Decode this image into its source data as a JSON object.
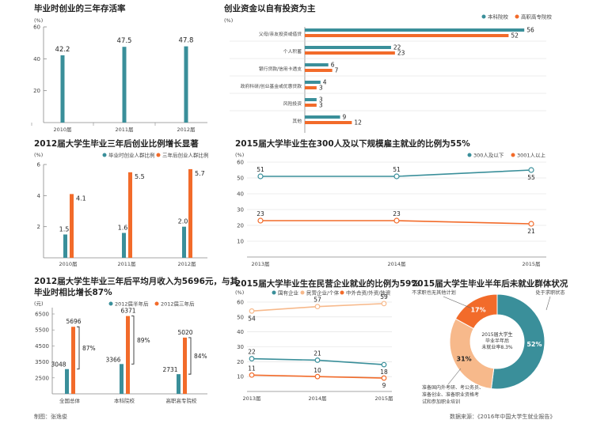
{
  "colors": {
    "teal": "#3a8f9a",
    "orange": "#f26b2a",
    "peach": "#f7b98b",
    "axis": "#999999",
    "grid": "#dddddd"
  },
  "footer": {
    "credit": "制图：张逸俊",
    "source": "数据来源：《2016年中国大学生就业报告》"
  },
  "chart_data": [
    {
      "id": "c1",
      "type": "bar",
      "title": "毕业时创业的三年存活率",
      "ylabel": "(%)",
      "categories": [
        "2010届",
        "2011届",
        "2012届"
      ],
      "series": [
        {
          "values": [
            42.2,
            47.5,
            47.8
          ]
        }
      ],
      "ylim": [
        0,
        60
      ],
      "yticks": [
        20,
        40,
        60
      ],
      "data_labels": [
        "42.2",
        "47.5",
        "47.8"
      ]
    },
    {
      "id": "c2",
      "type": "bar",
      "orientation": "horizontal",
      "title": "创业资金以自有投资为主",
      "ylabel": "(%)",
      "categories": [
        "父母/亲友投资或借贷",
        "个人积蓄",
        "银行贷款/信用卡透支",
        "政府科研/创业基金或优惠贷款",
        "风险投资",
        "其他"
      ],
      "series": [
        {
          "name": "本科院校",
          "values": [
            56,
            22,
            6,
            4,
            3,
            9
          ]
        },
        {
          "name": "高职高专院校",
          "values": [
            52,
            23,
            7,
            3,
            3,
            12
          ]
        }
      ],
      "xlim": [
        0,
        60
      ],
      "legend_position": "top-right"
    },
    {
      "id": "c3",
      "type": "bar",
      "title": "2012届大学生毕业三年后创业比例增长显著",
      "ylabel": "(%)",
      "categories": [
        "2010届",
        "2011届",
        "2012届"
      ],
      "series": [
        {
          "name": "毕业时创业人群比例",
          "values": [
            1.5,
            1.6,
            2.0
          ]
        },
        {
          "name": "三年后创业人群比例",
          "values": [
            4.1,
            5.5,
            5.7
          ]
        }
      ],
      "ylim": [
        0,
        6
      ],
      "yticks": [
        2,
        4,
        6
      ],
      "legend_position": "top-right"
    },
    {
      "id": "c4",
      "type": "line",
      "title": "2015届大学毕业生在300人及以下规模雇主就业的比例为55%",
      "ylabel": "(%)",
      "x": [
        "2013届",
        "2014届",
        "2015届"
      ],
      "series": [
        {
          "name": "300人及以下",
          "values": [
            51,
            51,
            55
          ]
        },
        {
          "name": "3001人以上",
          "values": [
            23,
            23,
            21
          ]
        }
      ],
      "ylim": [
        0,
        60
      ],
      "yticks": [
        10,
        20,
        30,
        40,
        50,
        60
      ],
      "legend_position": "top-right"
    },
    {
      "id": "c5",
      "type": "bar",
      "title_lines": [
        "2012届大学生毕业三年后平均月收入为5696元，与其",
        "毕业时相比增长87%"
      ],
      "ylabel": "(元)",
      "categories": [
        "全国总体",
        "本科院校",
        "高职高专院校"
      ],
      "series": [
        {
          "name": "2012届半年后",
          "values": [
            3048,
            3366,
            2731
          ]
        },
        {
          "name": "2012届三年后",
          "values": [
            5696,
            6371,
            5020
          ]
        }
      ],
      "growth": [
        "87%",
        "89%",
        "84%"
      ],
      "ylim": [
        1500,
        6500
      ],
      "yticks": [
        2500,
        3500,
        4500,
        5500,
        6500
      ],
      "legend_position": "top-right"
    },
    {
      "id": "c6",
      "type": "line",
      "title": "2015届大学毕业生在民营企业就业的比例为59%",
      "ylabel": "(%)",
      "x": [
        "2013届",
        "2014届",
        "2015届"
      ],
      "series": [
        {
          "name": "国有企业",
          "values": [
            22,
            21,
            18
          ]
        },
        {
          "name": "民营企业/个体",
          "values": [
            54,
            57,
            59
          ]
        },
        {
          "name": "中外合资/外资/独资",
          "values": [
            11,
            10,
            9
          ]
        }
      ],
      "ylim": [
        0,
        60
      ],
      "yticks": [
        10,
        20,
        30,
        40,
        50,
        60
      ],
      "legend_position": "top"
    },
    {
      "id": "c7",
      "type": "pie",
      "title": "2015届大学生毕业半年后未就业群体状况",
      "center_text": [
        "2015届大学生",
        "毕业半年后",
        "未就业率8.3%"
      ],
      "slices": [
        {
          "label": "处于求职状态",
          "value": 52
        },
        {
          "label": "准备国内外考研、考公务员、准备创业、准备职业资格考试和参加职业培训",
          "value": 31
        },
        {
          "label": "不求职也无其他计划",
          "value": 17
        }
      ],
      "value_labels": [
        "52%",
        "31%",
        "17%"
      ],
      "callouts": [
        "处于求职状态",
        "不求职也无其他计划"
      ],
      "note_lines": [
        "准备国内外考研、考公务员、",
        "准备创业、准备职业资格考",
        "试和参加职业培训"
      ]
    }
  ]
}
